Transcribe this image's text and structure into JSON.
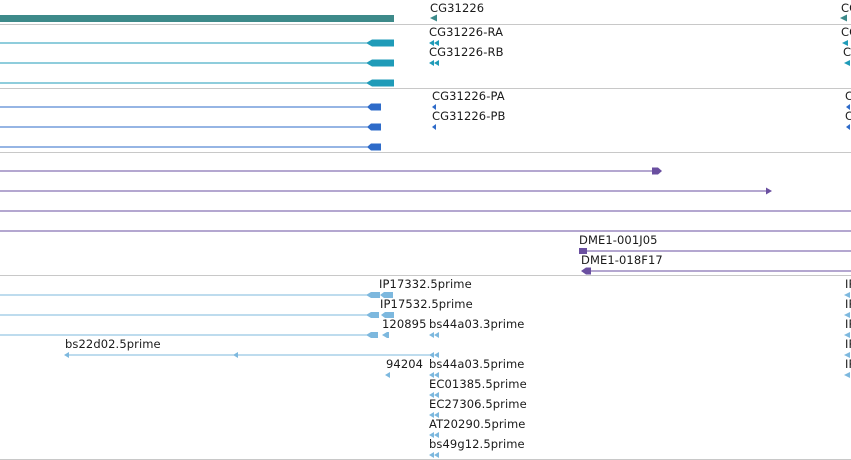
{
  "colors": {
    "gene": "#3d8a8a",
    "transcript": "#1f9bb8",
    "protein": "#2e6bc9",
    "clone": "#6a4fa0",
    "est": "#7db8de",
    "separator": "#c8c8c8"
  },
  "gene_track": {
    "gene_label": "CG31226",
    "gene_label_right": "CG"
  },
  "transcript_track": {
    "labels": [
      "CG31226-RA",
      "CG31226-RB"
    ],
    "labels_right": [
      "CG",
      "CG"
    ]
  },
  "protein_track": {
    "labels": [
      "CG31226-PA",
      "CG31226-PB"
    ],
    "labels_right": [
      "C",
      "C"
    ]
  },
  "clone_track": {
    "labels": [
      "DME1-001J05",
      "DME1-018F17"
    ]
  },
  "est_track": {
    "labels": [
      "IP17332.5prime",
      "IP17532.5prime",
      "120895",
      "bs44a03.3prime",
      "bs22d02.5prime",
      "94204",
      "bs44a03.5prime",
      "EC01385.5prime",
      "EC27306.5prime",
      "AT20290.5prime",
      "bs49g12.5prime"
    ],
    "labels_right": [
      "IP",
      "IP",
      "IP",
      "IP",
      "IP"
    ]
  }
}
